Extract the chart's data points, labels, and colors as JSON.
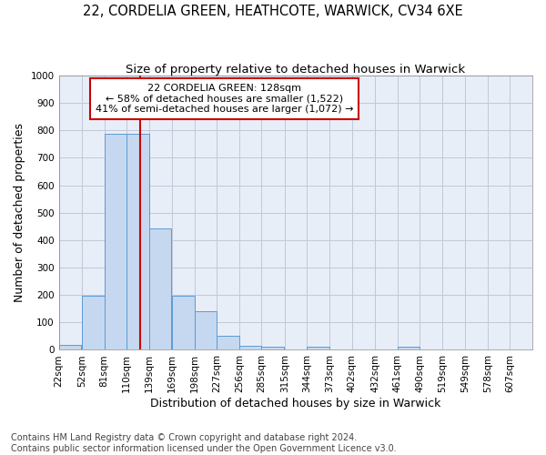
{
  "title1": "22, CORDELIA GREEN, HEATHCOTE, WARWICK, CV34 6XE",
  "title2": "Size of property relative to detached houses in Warwick",
  "xlabel": "Distribution of detached houses by size in Warwick",
  "ylabel": "Number of detached properties",
  "footer1": "Contains HM Land Registry data © Crown copyright and database right 2024.",
  "footer2": "Contains public sector information licensed under the Open Government Licence v3.0.",
  "annotation_line1": "22 CORDELIA GREEN: 128sqm",
  "annotation_line2": "← 58% of detached houses are smaller (1,522)",
  "annotation_line3": "41% of semi-detached houses are larger (1,072) →",
  "bar_left_edges": [
    22,
    52,
    81,
    110,
    139,
    169,
    198,
    227,
    256,
    285,
    315,
    344,
    373,
    402,
    432,
    461,
    490,
    519,
    549,
    578
  ],
  "bar_widths": [
    29,
    29,
    29,
    29,
    29,
    29,
    29,
    29,
    29,
    29,
    29,
    29,
    29,
    29,
    29,
    29,
    29,
    29,
    29,
    29
  ],
  "bar_heights": [
    18,
    196,
    789,
    789,
    443,
    196,
    141,
    50,
    15,
    10,
    0,
    10,
    0,
    0,
    0,
    10,
    0,
    0,
    0,
    0
  ],
  "tick_labels": [
    "22sqm",
    "52sqm",
    "81sqm",
    "110sqm",
    "139sqm",
    "169sqm",
    "198sqm",
    "227sqm",
    "256sqm",
    "285sqm",
    "315sqm",
    "344sqm",
    "373sqm",
    "402sqm",
    "432sqm",
    "461sqm",
    "490sqm",
    "519sqm",
    "549sqm",
    "578sqm",
    "607sqm"
  ],
  "bar_color": "#c5d8f0",
  "bar_edge_color": "#5b9bd5",
  "red_line_x": 128,
  "ylim": [
    0,
    1000
  ],
  "yticks": [
    0,
    100,
    200,
    300,
    400,
    500,
    600,
    700,
    800,
    900,
    1000
  ],
  "grid_color": "#c0c8d8",
  "bg_color": "#e8eef8",
  "annotation_box_color": "#cc0000",
  "title_fontsize": 10.5,
  "subtitle_fontsize": 9.5,
  "axis_label_fontsize": 9,
  "tick_fontsize": 7.5,
  "footer_fontsize": 7,
  "annotation_fontsize": 8
}
